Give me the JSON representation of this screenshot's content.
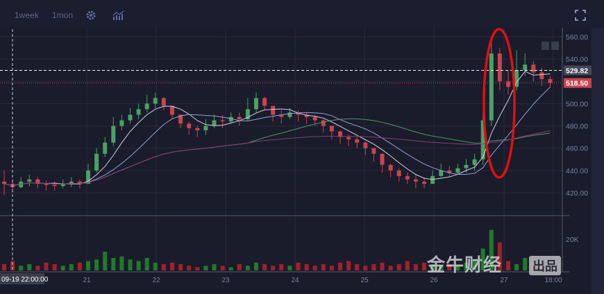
{
  "toolbar": {
    "period_week": "1week",
    "period_month": "1mon",
    "settings_icon": "gear-icon",
    "indicators_icon": "chart-indicator-icon",
    "fullscreen_icon": "expand-icon"
  },
  "crosshair_label": "09-19 22:00:00",
  "watermark": {
    "text": "金牛财经",
    "badge": "出品"
  },
  "colors": {
    "up": "#4aa163",
    "down": "#c8444e",
    "bg": "#1a1c2b",
    "annotation": "#e01010",
    "ma_colors": [
      "#d0d0e8",
      "#8fa0d8",
      "#4a9a5a",
      "#8a3a7a"
    ]
  },
  "chart_data": {
    "type": "candlestick",
    "price_axis": {
      "ticks": [
        420,
        440,
        460,
        480,
        500,
        520,
        540,
        560
      ],
      "tick_labels": [
        "420.00",
        "440.00",
        "460.00",
        "480.00",
        "500.00",
        "",
        "540.00",
        "560.00"
      ],
      "range": [
        410,
        566
      ]
    },
    "volume_axis": {
      "ticks": [
        20000
      ],
      "tick_labels": [
        "20K"
      ],
      "range": [
        0,
        30000
      ]
    },
    "time_labels": [
      "21",
      "22",
      "23",
      "24",
      "25",
      "26",
      "27",
      "18:00"
    ],
    "price_lines": [
      {
        "label": "529.82",
        "value": 529.82,
        "style": "dashed",
        "color": "#ffffff"
      },
      {
        "label": "518.50",
        "value": 518.5,
        "style": "dotted",
        "color": "#c8444e"
      }
    ],
    "close": [
      428,
      425,
      430,
      432,
      428,
      427,
      426,
      428,
      430,
      428,
      440,
      455,
      465,
      480,
      485,
      490,
      495,
      500,
      505,
      498,
      490,
      482,
      478,
      476,
      480,
      485,
      484,
      488,
      486,
      495,
      505,
      498,
      490,
      488,
      492,
      490,
      488,
      485,
      480,
      475,
      470,
      468,
      465,
      460,
      455,
      445,
      440,
      435,
      432,
      430,
      428,
      435,
      440,
      438,
      442,
      445,
      450,
      485,
      545,
      520,
      515,
      530,
      535,
      528,
      522,
      518.5
    ],
    "high": [
      440,
      432,
      434,
      436,
      434,
      431,
      430,
      432,
      434,
      432,
      446,
      460,
      470,
      488,
      490,
      496,
      500,
      508,
      510,
      506,
      498,
      490,
      484,
      480,
      486,
      490,
      490,
      492,
      492,
      505,
      510,
      506,
      496,
      494,
      496,
      494,
      492,
      490,
      486,
      480,
      476,
      472,
      470,
      466,
      460,
      452,
      446,
      442,
      438,
      436,
      434,
      440,
      446,
      444,
      446,
      450,
      455,
      492,
      560,
      550,
      530,
      548,
      545,
      538,
      532,
      525
    ],
    "low": [
      418,
      420,
      424,
      426,
      424,
      422,
      422,
      424,
      425,
      424,
      428,
      438,
      452,
      462,
      476,
      482,
      486,
      492,
      496,
      494,
      486,
      478,
      472,
      470,
      472,
      478,
      478,
      482,
      480,
      484,
      492,
      494,
      484,
      482,
      486,
      484,
      482,
      480,
      474,
      468,
      464,
      462,
      460,
      454,
      448,
      438,
      434,
      430,
      428,
      424,
      424,
      428,
      434,
      434,
      436,
      438,
      440,
      445,
      480,
      512,
      508,
      512,
      525,
      520,
      516,
      514
    ],
    "volume": [
      4000,
      6000,
      3000,
      4000,
      3000,
      5000,
      4000,
      3000,
      4000,
      5000,
      6000,
      7000,
      12000,
      8000,
      9000,
      7000,
      6000,
      8000,
      5000,
      4000,
      5000,
      4000,
      3000,
      2000,
      3000,
      4000,
      3000,
      2000,
      4000,
      3000,
      5000,
      4000,
      3000,
      4000,
      3000,
      5000,
      4000,
      3000,
      4000,
      3000,
      5000,
      6000,
      4000,
      3000,
      4000,
      5000,
      3000,
      4000,
      6000,
      4000,
      5000,
      4000,
      3000,
      4000,
      3000,
      5000,
      6000,
      14000,
      26000,
      18000,
      6000,
      4000,
      8000,
      5000,
      3000,
      2000
    ],
    "moving_averages": [
      5,
      10,
      30,
      60
    ]
  }
}
